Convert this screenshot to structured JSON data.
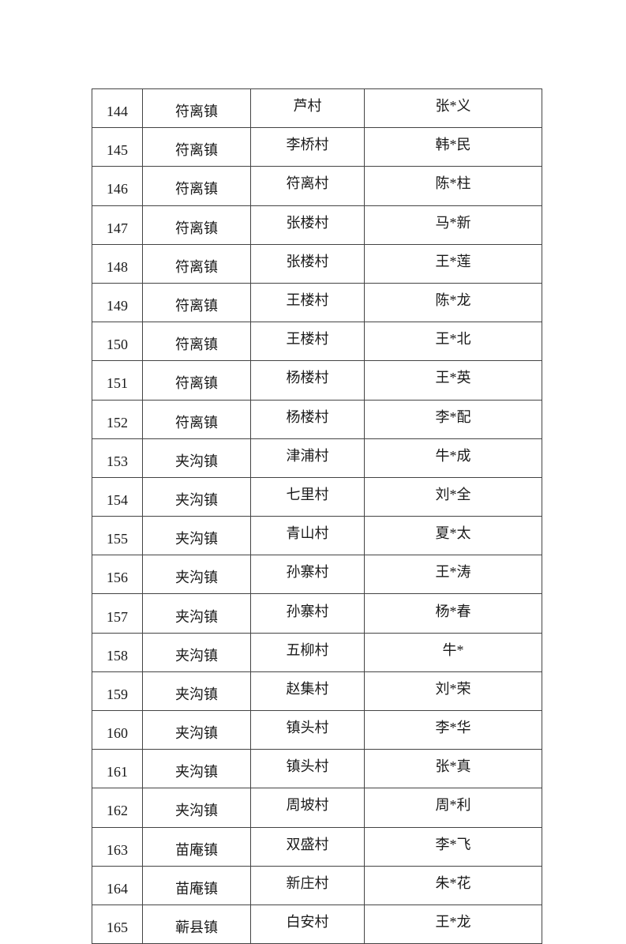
{
  "rows": [
    {
      "no": "144",
      "town": "符离镇",
      "village": "芦村",
      "name": "张*义"
    },
    {
      "no": "145",
      "town": "符离镇",
      "village": "李桥村",
      "name": "韩*民"
    },
    {
      "no": "146",
      "town": "符离镇",
      "village": "符离村",
      "name": "陈*柱"
    },
    {
      "no": "147",
      "town": "符离镇",
      "village": "张楼村",
      "name": "马*新"
    },
    {
      "no": "148",
      "town": "符离镇",
      "village": "张楼村",
      "name": "王*莲"
    },
    {
      "no": "149",
      "town": "符离镇",
      "village": "王楼村",
      "name": "陈*龙"
    },
    {
      "no": "150",
      "town": "符离镇",
      "village": "王楼村",
      "name": "王*北"
    },
    {
      "no": "151",
      "town": "符离镇",
      "village": "杨楼村",
      "name": "王*英"
    },
    {
      "no": "152",
      "town": "符离镇",
      "village": "杨楼村",
      "name": "李*配"
    },
    {
      "no": "153",
      "town": "夹沟镇",
      "village": "津浦村",
      "name": "牛*成"
    },
    {
      "no": "154",
      "town": "夹沟镇",
      "village": "七里村",
      "name": "刘*全"
    },
    {
      "no": "155",
      "town": "夹沟镇",
      "village": "青山村",
      "name": "夏*太"
    },
    {
      "no": "156",
      "town": "夹沟镇",
      "village": "孙寨村",
      "name": "王*涛"
    },
    {
      "no": "157",
      "town": "夹沟镇",
      "village": "孙寨村",
      "name": "杨*春"
    },
    {
      "no": "158",
      "town": "夹沟镇",
      "village": "五柳村",
      "name": "牛*"
    },
    {
      "no": "159",
      "town": "夹沟镇",
      "village": "赵集村",
      "name": "刘*荣"
    },
    {
      "no": "160",
      "town": "夹沟镇",
      "village": "镇头村",
      "name": "李*华"
    },
    {
      "no": "161",
      "town": "夹沟镇",
      "village": "镇头村",
      "name": "张*真"
    },
    {
      "no": "162",
      "town": "夹沟镇",
      "village": "周坡村",
      "name": "周*利"
    },
    {
      "no": "163",
      "town": "苗庵镇",
      "village": "双盛村",
      "name": "李*飞"
    },
    {
      "no": "164",
      "town": "苗庵镇",
      "village": "新庄村",
      "name": "朱*花"
    },
    {
      "no": "165",
      "town": "蕲县镇",
      "village": "白安村",
      "name": "王*龙"
    }
  ]
}
